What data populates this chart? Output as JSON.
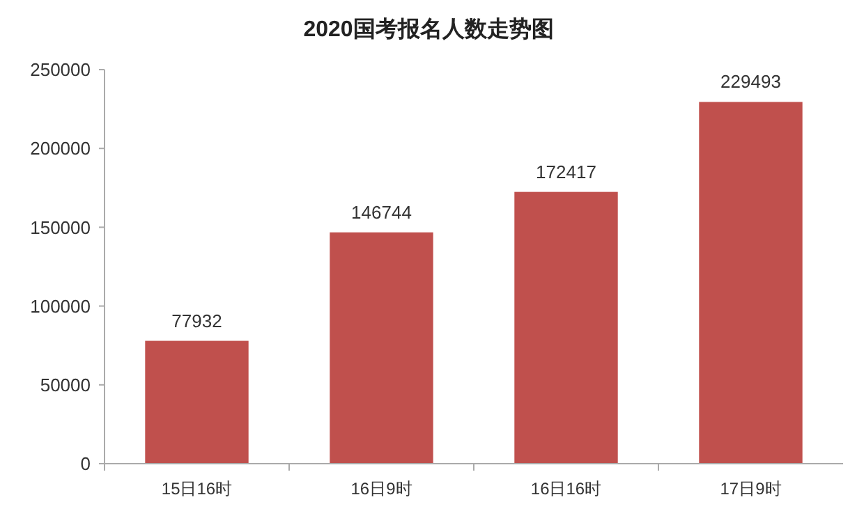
{
  "chart_data": {
    "type": "bar",
    "title": "2020国考报名人数走势图",
    "categories": [
      "15日16时",
      "16日9时",
      "16日16时",
      "17日9时"
    ],
    "values": [
      77932,
      146744,
      172417,
      229493
    ],
    "color": "#c0504d",
    "ylim": [
      0,
      250000
    ],
    "yticks": [
      0,
      50000,
      100000,
      150000,
      200000,
      250000
    ],
    "data_labels": true,
    "grid": false
  }
}
